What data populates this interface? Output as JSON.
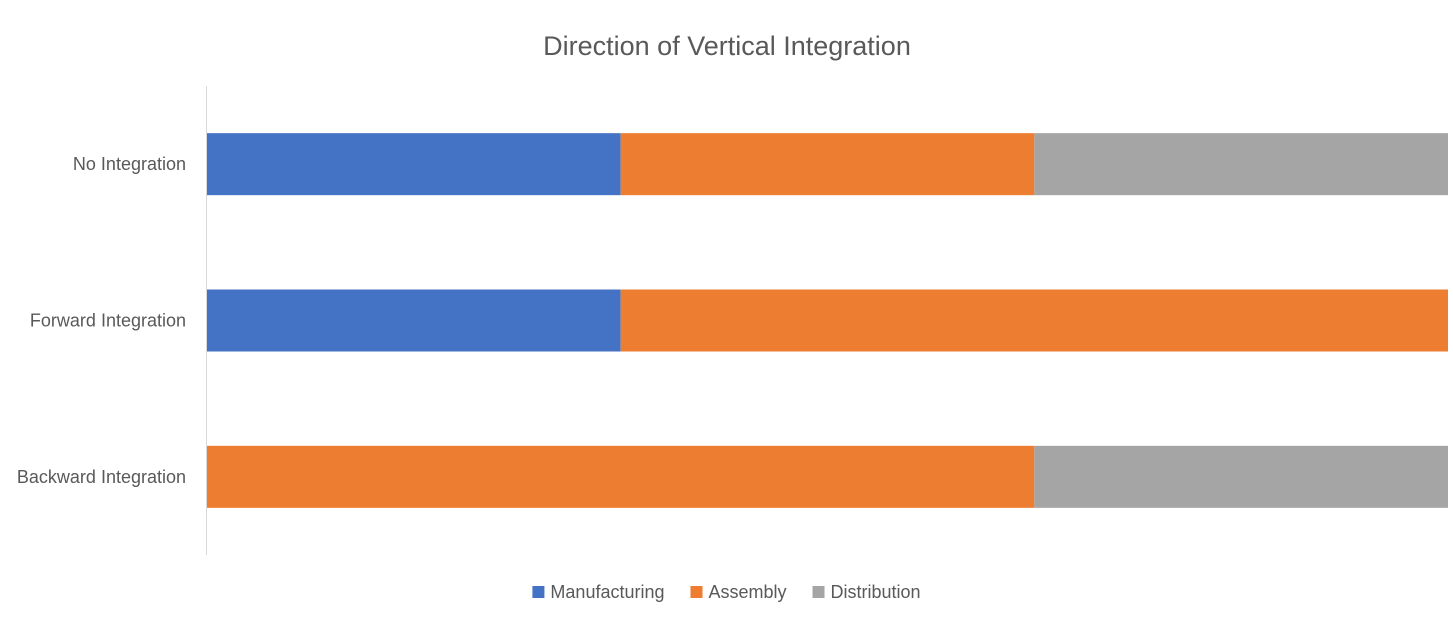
{
  "chart_data": {
    "type": "bar",
    "orientation": "horizontal",
    "stacked": true,
    "title": "Direction of Vertical Integration",
    "categories": [
      "No Integration",
      "Forward Integration",
      "Backward Integration"
    ],
    "series": [
      {
        "name": "Manufacturing",
        "color": "#4472C4",
        "values": [
          1,
          1,
          0
        ]
      },
      {
        "name": "Assembly",
        "color": "#ED7D31",
        "values": [
          1,
          2,
          2
        ]
      },
      {
        "name": "Distribution",
        "color": "#A5A5A5",
        "values": [
          1,
          0,
          1
        ]
      }
    ],
    "xlim": [
      0,
      3
    ],
    "grid": false,
    "legend_position": "bottom"
  }
}
